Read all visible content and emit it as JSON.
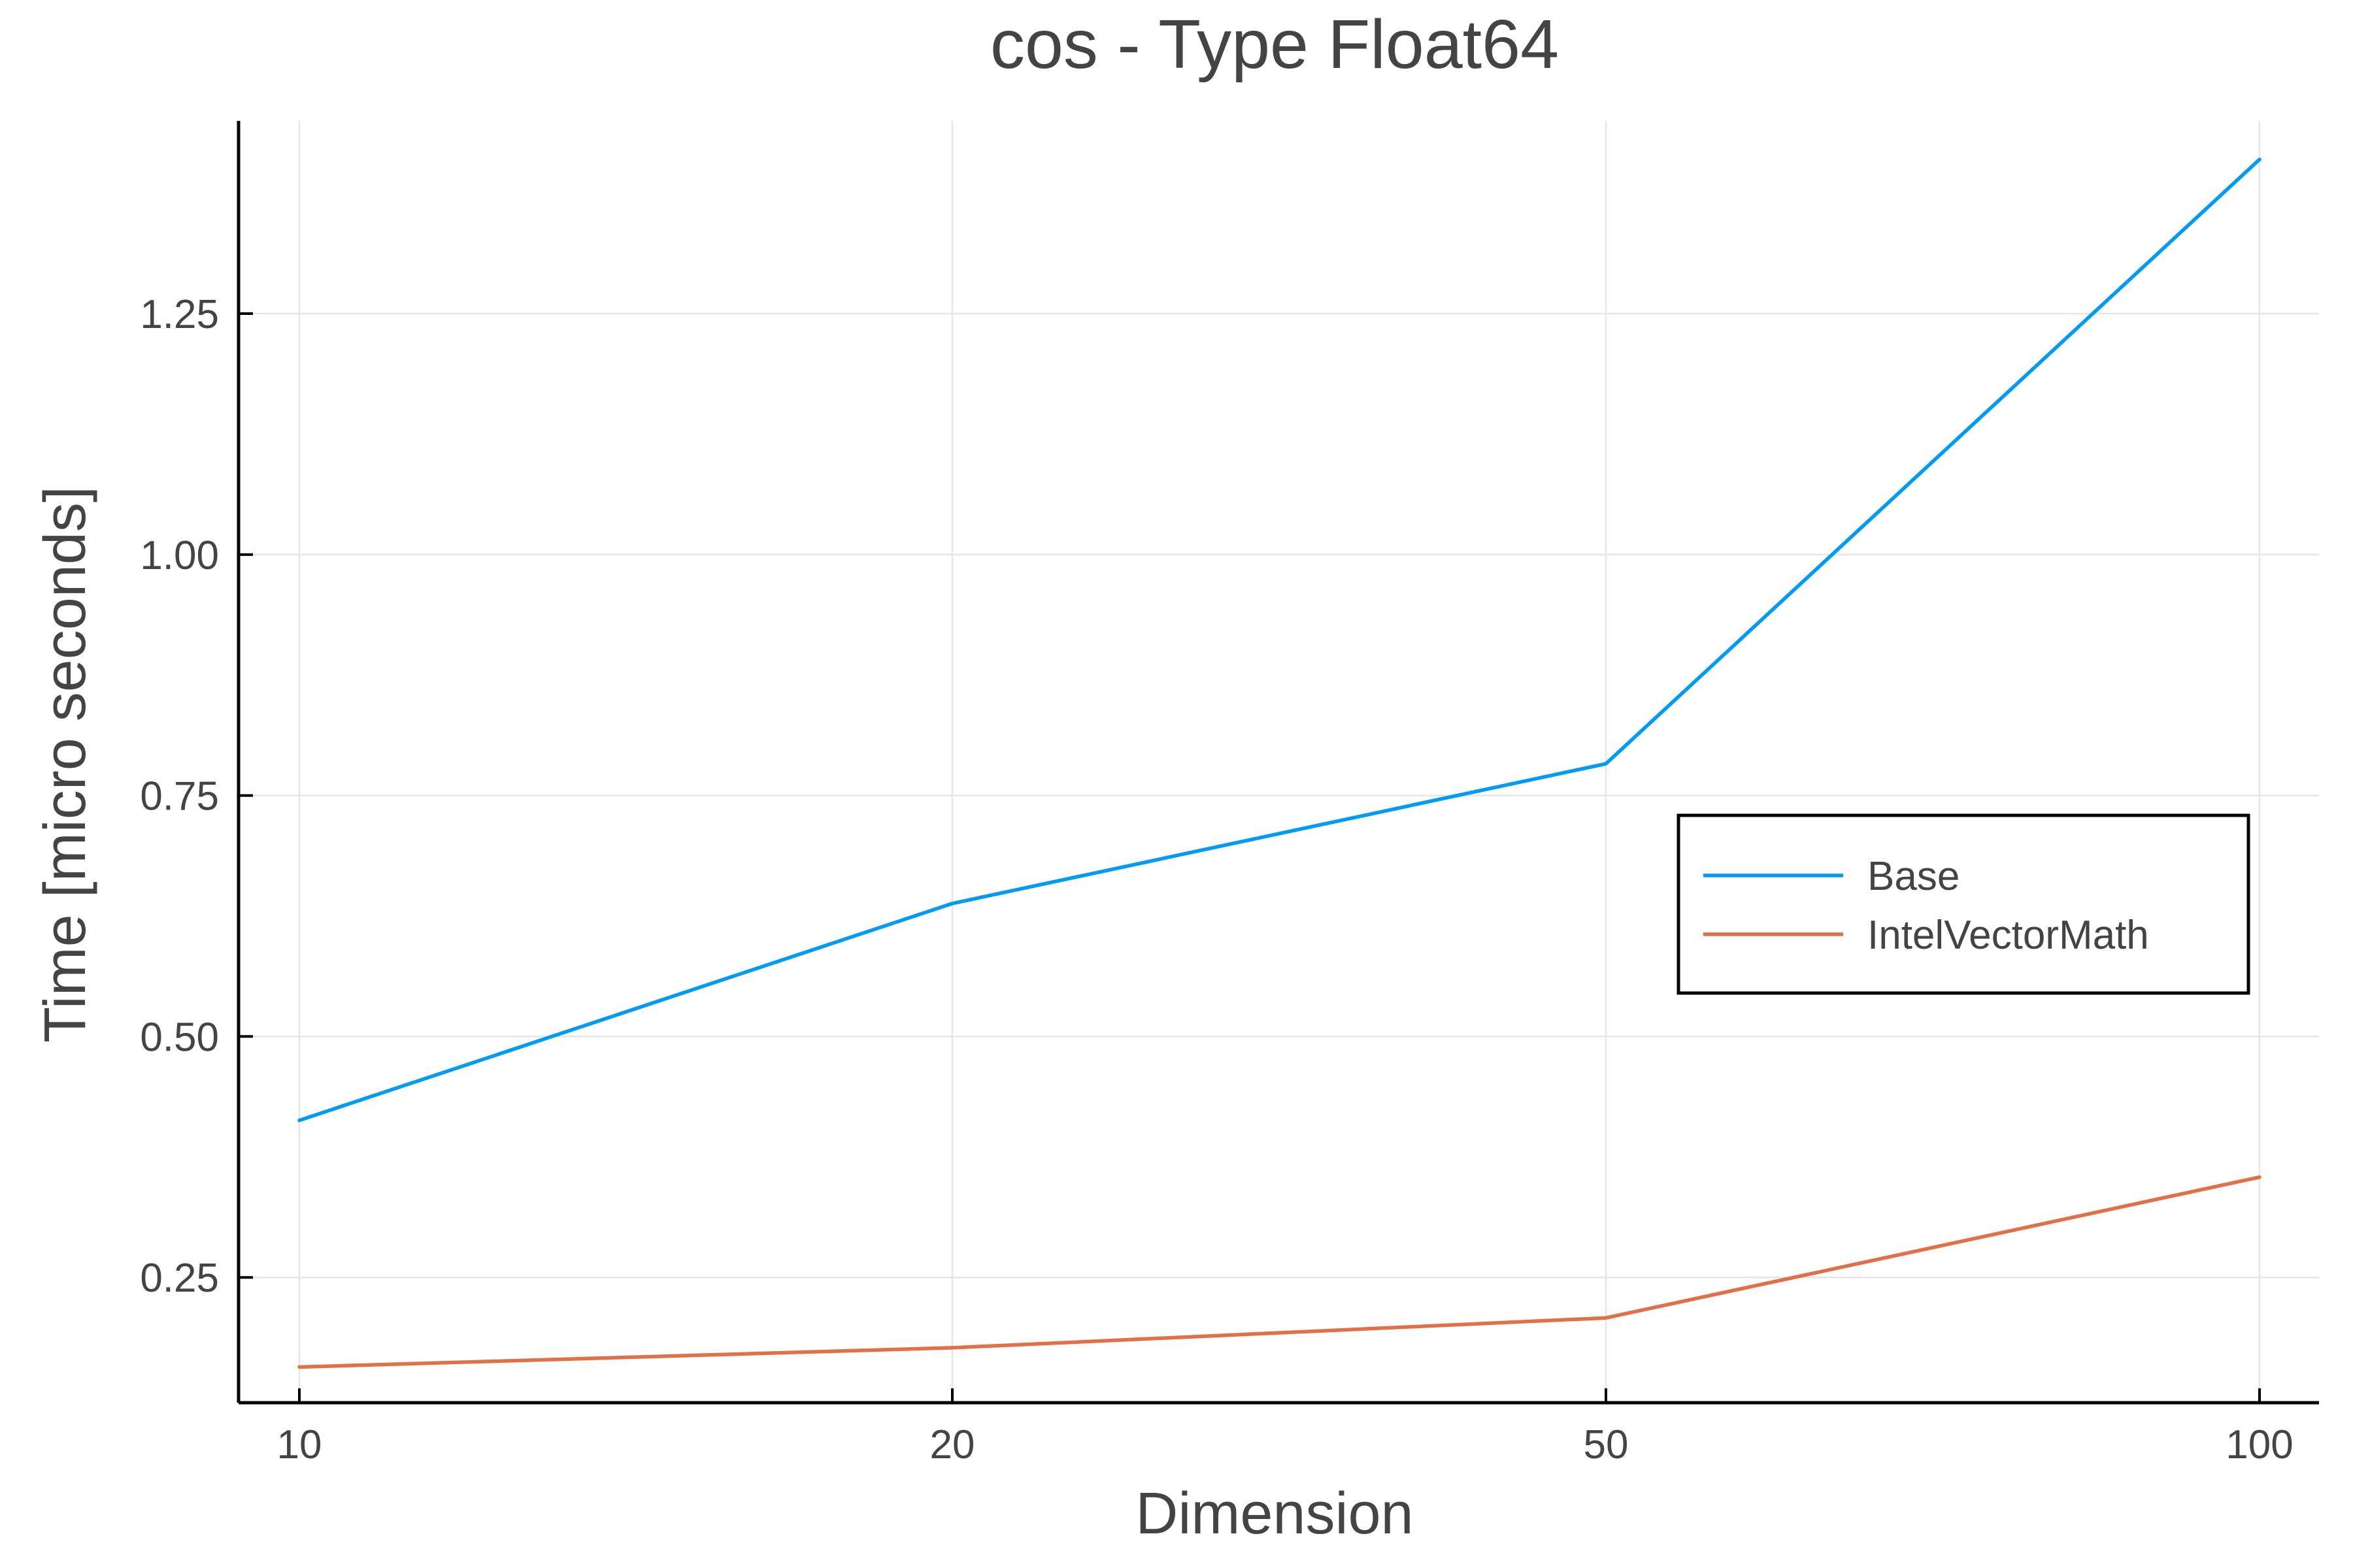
{
  "chart_data": {
    "type": "line",
    "title": "cos - Type Float64",
    "xlabel": "Dimension",
    "ylabel": "Time [micro seconds]",
    "x": [
      "10",
      "20",
      "50",
      "100"
    ],
    "x_scale": "categorical",
    "ylim": [
      0.12,
      1.45
    ],
    "yticks": [
      0.25,
      0.5,
      0.75,
      1.0,
      1.25
    ],
    "ytick_labels": [
      "0.25",
      "0.50",
      "0.75",
      "1.00",
      "1.25"
    ],
    "grid": true,
    "legend_position": "center-right",
    "series": [
      {
        "name": "Base",
        "color": "#009af9",
        "values": [
          0.413,
          0.638,
          0.783,
          1.41
        ]
      },
      {
        "name": "IntelVectorMath",
        "color": "#e26f46",
        "values": [
          0.157,
          0.177,
          0.208,
          0.354
        ]
      }
    ]
  }
}
